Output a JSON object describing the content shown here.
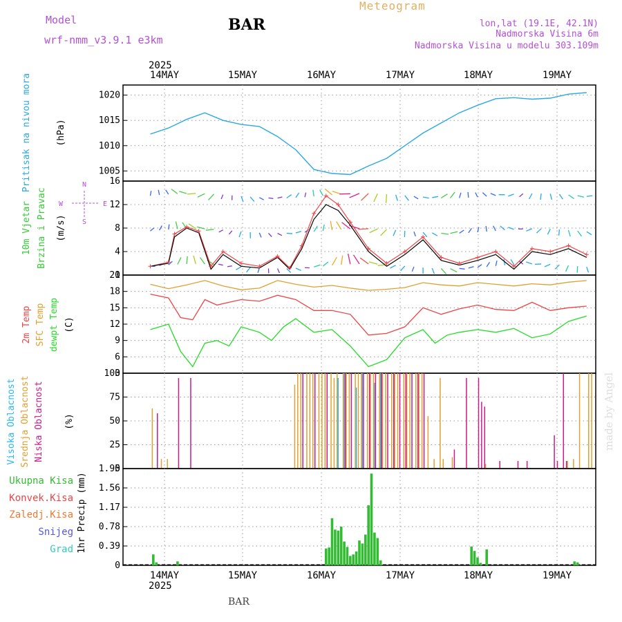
{
  "header": {
    "model_label": "Model",
    "model_name": "wrf-nmm_v3.9.1 e3km",
    "station": "BAR",
    "title": "Meteogram",
    "coords": "lon,lat (19.1E, 42.1N)",
    "elevation": "Nadmorska Visina 6m",
    "model_elevation": "Nadmorska Visina u modelu 303.109m"
  },
  "footer": {
    "station": "BAR",
    "credit": "made by Angel"
  },
  "dates": {
    "year": "2025",
    "labels": [
      "14MAY",
      "15MAY",
      "16MAY",
      "17MAY",
      "18MAY",
      "19MAY"
    ]
  },
  "colors": {
    "pressure": "#29a8e6",
    "wind_label": "#33cc33",
    "t2m": "#ee4444",
    "tsfc": "#e0a030",
    "dew": "#22dd22",
    "high_cloud": "#29b6f6",
    "mid_cloud": "#e0a030",
    "low_cloud": "#cc1a8c",
    "rain": "#33bb33",
    "conv": "#ee4444",
    "frz": "#f07830",
    "snow": "#5555ee",
    "hail": "#33ccbb",
    "compass": "#b44fd8"
  },
  "axis_labels": {
    "pressure": [
      "Pritisak na nivou mora",
      "(hPa)"
    ],
    "wind": [
      "10m Vjetar",
      "Brzina i Pravac",
      "(m/s)"
    ],
    "temp": [
      "2m Temp",
      "SFC Temp",
      "dewpt Temp",
      "(C)"
    ],
    "cloud": [
      "Visoka Oblacnost",
      "Srednja Oblacnost",
      "Niska Oblacnost",
      "(%)"
    ],
    "precip": [
      "Ukupna Kisa",
      "Konvek.Kisa",
      "Zaledj.Kisa",
      "Snijeg",
      "Grad",
      "1hr Precip (mm)"
    ],
    "compass": [
      "N",
      "E",
      "S",
      "W"
    ]
  },
  "chart_data": [
    {
      "type": "line",
      "name": "pressure",
      "ylim": [
        1003,
        1022
      ],
      "yticks": [
        "1005",
        "1010",
        "1015",
        "1020"
      ],
      "x": [
        0,
        6,
        12,
        18,
        24,
        30,
        36,
        42,
        48,
        54,
        60,
        66,
        72,
        78,
        84,
        90,
        96,
        102,
        108,
        114,
        120,
        126,
        132,
        138,
        144
      ],
      "values": [
        1012.3,
        1013.5,
        1015.2,
        1016.5,
        1015.0,
        1014.2,
        1013.8,
        1011.8,
        1009.2,
        1005.3,
        1004.5,
        1004.3,
        1006.0,
        1007.5,
        1010.0,
        1012.5,
        1014.5,
        1016.5,
        1018.0,
        1019.3,
        1019.5,
        1019.2,
        1019.4,
        1020.2,
        1020.5
      ]
    },
    {
      "type": "line",
      "name": "wind",
      "ylim": [
        0,
        16
      ],
      "yticks": [
        "0",
        "4",
        "8",
        "12",
        "16"
      ],
      "series": [
        {
          "name": "speed",
          "x": [
            0,
            6,
            8,
            12,
            16,
            20,
            24,
            30,
            36,
            42,
            46,
            50,
            54,
            58,
            62,
            66,
            72,
            78,
            84,
            90,
            96,
            102,
            108,
            114,
            120,
            126,
            132,
            138,
            144
          ],
          "values": [
            1.5,
            2.0,
            6.5,
            8.0,
            7.2,
            1.0,
            3.5,
            1.5,
            1.2,
            3.0,
            1.0,
            4.5,
            9.5,
            12.0,
            11.0,
            8.5,
            4.0,
            1.5,
            3.5,
            6.0,
            2.5,
            1.7,
            2.5,
            3.5,
            1.0,
            4.0,
            3.5,
            4.5,
            3.0
          ]
        },
        {
          "name": "gust",
          "x": [
            0,
            6,
            8,
            12,
            16,
            20,
            24,
            30,
            36,
            42,
            46,
            50,
            54,
            58,
            62,
            66,
            72,
            78,
            84,
            90,
            96,
            102,
            108,
            114,
            120,
            126,
            132,
            138,
            144
          ],
          "values": [
            1.5,
            2.2,
            7.0,
            8.2,
            7.5,
            1.5,
            4.0,
            2.0,
            1.5,
            3.2,
            1.2,
            5.0,
            10.5,
            13.5,
            12.0,
            9.0,
            4.5,
            2.0,
            4.0,
            6.5,
            3.0,
            2.0,
            3.0,
            4.0,
            1.5,
            4.5,
            4.0,
            5.0,
            3.5
          ]
        }
      ]
    },
    {
      "type": "line",
      "name": "temperature",
      "ylim": [
        3,
        21
      ],
      "yticks": [
        "3",
        "6",
        "9",
        "12",
        "15",
        "18",
        "21"
      ],
      "series": [
        {
          "name": "2m Temp",
          "x": [
            0,
            6,
            10,
            14,
            18,
            22,
            26,
            30,
            36,
            42,
            48,
            54,
            60,
            66,
            72,
            78,
            84,
            90,
            96,
            102,
            108,
            114,
            120,
            126,
            132,
            138,
            144
          ],
          "values": [
            17.5,
            16.8,
            13.2,
            12.8,
            16.5,
            15.5,
            16.0,
            16.5,
            16.2,
            17.3,
            16.5,
            14.5,
            14.5,
            13.8,
            10.0,
            10.3,
            11.5,
            15.0,
            13.8,
            14.8,
            15.5,
            14.7,
            14.5,
            16.0,
            14.5,
            15.0,
            15.3
          ]
        },
        {
          "name": "SFC Temp",
          "x": [
            0,
            6,
            12,
            18,
            24,
            30,
            36,
            42,
            48,
            54,
            60,
            66,
            72,
            78,
            84,
            90,
            96,
            102,
            108,
            114,
            120,
            126,
            132,
            138,
            144
          ],
          "values": [
            19.3,
            18.5,
            19.2,
            20.0,
            19.0,
            18.3,
            18.6,
            20.0,
            19.3,
            18.8,
            19.1,
            18.6,
            18.2,
            18.4,
            18.7,
            19.6,
            19.2,
            19.0,
            19.6,
            19.3,
            19.0,
            19.4,
            19.2,
            19.7,
            20.0
          ]
        },
        {
          "name": "dewpt Temp",
          "x": [
            0,
            6,
            10,
            14,
            18,
            22,
            26,
            30,
            36,
            40,
            44,
            48,
            54,
            60,
            66,
            72,
            78,
            84,
            90,
            94,
            98,
            102,
            108,
            114,
            120,
            126,
            132,
            138,
            144
          ],
          "values": [
            11.0,
            12.0,
            7.0,
            4.2,
            8.5,
            9.0,
            8.0,
            11.5,
            10.5,
            9.0,
            11.5,
            13.0,
            10.5,
            11.0,
            8.0,
            4.2,
            5.5,
            9.5,
            11.0,
            8.5,
            10.0,
            10.5,
            11.0,
            10.5,
            11.2,
            9.5,
            10.2,
            12.5,
            13.5
          ]
        }
      ]
    },
    {
      "type": "bar",
      "name": "cloud",
      "ylim": [
        0,
        100
      ],
      "yticks": [
        "0",
        "25",
        "50",
        "75",
        "100"
      ],
      "series": [
        {
          "name": "Visoka Oblacnost",
          "x": [
            62,
            64,
            68,
            70,
            74,
            76
          ],
          "values": [
            95,
            100,
            85,
            100,
            90,
            100
          ]
        },
        {
          "name": "Srednja Oblacnost",
          "x": [
            1,
            4,
            6,
            48,
            49,
            50,
            52,
            53,
            54,
            56,
            57,
            58,
            60,
            61,
            62,
            64,
            65,
            66,
            68,
            69,
            70,
            72,
            73,
            74,
            76,
            77,
            78,
            80,
            81,
            82,
            84,
            85,
            86,
            88,
            89,
            90,
            92,
            94,
            96,
            97,
            100,
            111,
            138,
            140,
            142,
            145,
            146
          ],
          "values": [
            63,
            10,
            10,
            88,
            100,
            100,
            100,
            100,
            100,
            100,
            100,
            100,
            100,
            95,
            100,
            100,
            100,
            100,
            100,
            100,
            100,
            100,
            100,
            100,
            100,
            100,
            100,
            100,
            100,
            100,
            100,
            100,
            100,
            100,
            100,
            100,
            55,
            10,
            95,
            10,
            12,
            5,
            8,
            10,
            100,
            100,
            100
          ]
        },
        {
          "name": "Niska Oblacnost",
          "x": [
            2,
            9,
            13,
            50,
            54,
            58,
            64,
            66,
            70,
            72,
            74,
            76,
            78,
            80,
            82,
            84,
            86,
            88,
            90,
            100,
            104,
            108,
            109,
            110,
            115,
            121,
            124,
            133,
            134,
            136,
            137
          ],
          "values": [
            58,
            95,
            95,
            100,
            100,
            100,
            100,
            100,
            100,
            100,
            100,
            100,
            100,
            100,
            100,
            100,
            100,
            100,
            100,
            20,
            95,
            95,
            70,
            65,
            8,
            8,
            8,
            35,
            8,
            100,
            8
          ]
        }
      ]
    },
    {
      "type": "bar",
      "name": "precip",
      "ylim": [
        0,
        1.95
      ],
      "yticks": [
        "0",
        "0.39",
        "0.78",
        "1.17",
        "1.56",
        "1.95"
      ],
      "series": [
        {
          "name": "Ukupna Kisa",
          "x": [
            1,
            2,
            9,
            58,
            59,
            60,
            61,
            62,
            63,
            64,
            65,
            66,
            67,
            68,
            69,
            70,
            71,
            72,
            73,
            74,
            75,
            76,
            106,
            107,
            108,
            109,
            111,
            140,
            141
          ],
          "values": [
            0.22,
            0.06,
            0.08,
            0.34,
            0.36,
            0.95,
            0.72,
            0.7,
            0.78,
            0.48,
            0.37,
            0.19,
            0.22,
            0.28,
            0.5,
            0.44,
            0.62,
            1.21,
            1.85,
            0.66,
            0.55,
            0.1,
            0.38,
            0.29,
            0.16,
            0.05,
            0.32,
            0.08,
            0.06
          ]
        }
      ]
    }
  ]
}
